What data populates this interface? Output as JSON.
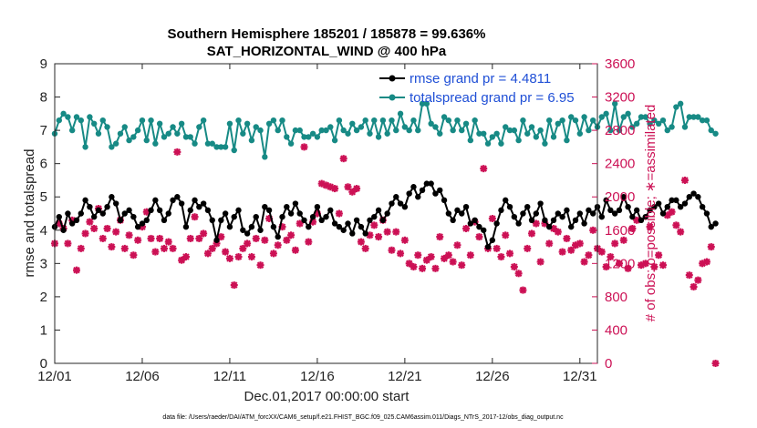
{
  "chart_data": {
    "type": "line",
    "title_line1": "Southern Hemisphere 185201 / 185878 = 99.636%",
    "title_line2": "SAT_HORIZONTAL_WIND @ 400 hPa",
    "xlabel": "Dec.01,2017 00:00:00 start",
    "ylabel_left": "rmse and totalspread",
    "ylabel_right": "# of obs: o=possible; ∗=assimilated",
    "x_ticks": [
      {
        "value": 0,
        "label": "12/01"
      },
      {
        "value": 5,
        "label": "12/06"
      },
      {
        "value": 10,
        "label": "12/11"
      },
      {
        "value": 15,
        "label": "12/16"
      },
      {
        "value": 20,
        "label": "12/21"
      },
      {
        "value": 25,
        "label": "12/26"
      },
      {
        "value": 30,
        "label": "12/31"
      }
    ],
    "xlim": [
      0,
      31
    ],
    "ylim_left": [
      0,
      9
    ],
    "ylim_right": [
      0,
      3600
    ],
    "yticks_left": [
      "0",
      "1",
      "2",
      "3",
      "4",
      "5",
      "6",
      "7",
      "8",
      "9"
    ],
    "yticks_right": [
      "0",
      "400",
      "800",
      "1200",
      "1600",
      "2000",
      "2400",
      "2800",
      "3200",
      "3600"
    ],
    "footnote": "data file: /Users/raeder/DAI/ATM_forcXX/CAM6_setup/f.e21.FHIST_BGC.f09_025.CAM6assim.011/Diags_NTrS_2017-12/obs_diag_output.nc",
    "legend": [
      {
        "label": "rmse grand pr = 4.4811",
        "color": "#000000"
      },
      {
        "label": "totalspread grand pr = 6.95",
        "color": "#178a85"
      }
    ],
    "colors": {
      "rmse": "#000000",
      "spread": "#178a85",
      "obs": "#cc1155",
      "right_axis": "#cc1155",
      "legend_text": "#1f4fd6"
    },
    "series": [
      {
        "name": "rmse",
        "x_start": 0,
        "x_step": 0.25,
        "values": [
          4.1,
          4.4,
          4.0,
          4.5,
          4.2,
          4.3,
          4.5,
          4.9,
          4.7,
          4.4,
          4.6,
          4.5,
          4.7,
          5.0,
          4.8,
          4.3,
          4.5,
          4.6,
          4.4,
          4.1,
          4.2,
          4.3,
          4.6,
          4.9,
          4.6,
          4.3,
          4.5,
          4.9,
          5.0,
          4.8,
          4.1,
          4.6,
          4.9,
          4.7,
          4.8,
          4.6,
          4.3,
          3.7,
          4.3,
          4.5,
          4.1,
          4.4,
          4.6,
          4.0,
          3.9,
          4.1,
          4.4,
          4.0,
          4.7,
          4.6,
          4.1,
          3.8,
          4.4,
          4.7,
          4.5,
          4.8,
          4.5,
          4.3,
          4.1,
          4.4,
          4.7,
          4.3,
          4.4,
          4.6,
          4.2,
          4.1,
          4.0,
          4.2,
          3.9,
          4.3,
          4.1,
          3.9,
          4.3,
          4.4,
          4.6,
          4.3,
          4.5,
          4.8,
          5.0,
          4.8,
          4.7,
          5.1,
          5.3,
          5.0,
          5.2,
          5.4,
          5.4,
          5.1,
          5.2,
          4.9,
          4.5,
          4.3,
          4.6,
          4.5,
          4.7,
          4.2,
          4.3,
          4.1,
          4.0,
          3.5,
          3.7,
          4.2,
          4.6,
          4.9,
          4.7,
          4.4,
          4.2,
          4.5,
          4.7,
          4.3,
          4.5,
          4.8,
          4.3,
          4.1,
          4.3,
          4.5,
          4.4,
          4.6,
          4.1,
          4.3,
          4.5,
          4.2,
          4.6,
          4.5,
          4.7,
          4.4,
          4.9,
          4.6,
          4.5,
          4.6,
          5.0,
          4.7,
          4.4,
          4.6,
          4.3,
          4.4,
          4.6,
          4.7,
          4.8,
          4.5,
          4.7,
          4.9,
          4.9,
          4.7,
          4.8,
          5.0,
          5.1,
          5.0,
          4.7,
          4.5,
          4.1,
          4.2
        ]
      },
      {
        "name": "totalspread",
        "x_start": 0,
        "x_step": 0.25,
        "values": [
          6.9,
          7.3,
          7.5,
          7.4,
          7.0,
          7.4,
          7.3,
          6.5,
          7.4,
          7.2,
          6.9,
          7.3,
          7.1,
          6.5,
          6.6,
          6.9,
          7.1,
          6.7,
          6.8,
          7.0,
          7.3,
          6.7,
          7.3,
          6.6,
          7.2,
          6.8,
          6.9,
          7.1,
          6.9,
          7.2,
          6.8,
          6.8,
          6.6,
          7.1,
          7.3,
          6.6,
          6.6,
          6.5,
          6.5,
          6.5,
          7.2,
          6.4,
          7.3,
          6.9,
          7.2,
          6.7,
          7.1,
          7.0,
          6.2,
          7.2,
          7.3,
          7.0,
          7.3,
          6.8,
          6.6,
          7.0,
          7.0,
          6.8,
          6.8,
          6.9,
          6.8,
          7.0,
          7.0,
          7.1,
          6.7,
          7.3,
          7.0,
          6.9,
          7.2,
          7.0,
          7.1,
          7.3,
          6.9,
          7.3,
          6.8,
          7.3,
          6.9,
          7.3,
          7.0,
          7.5,
          7.1,
          7.0,
          7.3,
          7.0,
          7.8,
          7.8,
          7.2,
          7.1,
          6.9,
          7.4,
          7.3,
          7.0,
          7.3,
          7.0,
          7.2,
          6.7,
          7.3,
          6.9,
          6.9,
          6.6,
          6.8,
          6.9,
          6.6,
          7.1,
          7.0,
          7.0,
          6.7,
          7.3,
          6.9,
          7.1,
          6.8,
          7.0,
          6.6,
          7.3,
          6.8,
          7.2,
          7.3,
          6.7,
          7.4,
          7.3,
          6.9,
          7.4,
          7.0,
          7.3,
          7.1,
          7.4,
          7.5,
          7.0,
          7.8,
          7.0,
          7.4,
          7.5,
          7.1,
          7.2,
          7.4,
          7.4,
          7.2,
          7.3,
          7.2,
          7.3,
          7.0,
          7.1,
          7.7,
          7.8,
          7.1,
          7.4,
          7.4,
          7.4,
          7.3,
          7.3,
          7.0,
          6.9
        ]
      },
      {
        "name": "observations_assimilated",
        "axis": "right",
        "x_start": 0,
        "x_step": 0.25,
        "values": [
          1440,
          1680,
          1620,
          1440,
          1720,
          1120,
          1380,
          1560,
          1700,
          1620,
          1860,
          1500,
          1620,
          1400,
          1580,
          1720,
          1380,
          1540,
          1300,
          1480,
          1640,
          1820,
          1500,
          1340,
          1500,
          1380,
          1460,
          1380,
          2540,
          1240,
          1280,
          1500,
          1760,
          1500,
          1560,
          1320,
          1380,
          1440,
          1520,
          1340,
          1260,
          940,
          1280,
          1380,
          1440,
          1280,
          1500,
          1180,
          1480,
          1740,
          1320,
          1420,
          1640,
          1480,
          1540,
          1360,
          1680,
          2600,
          1460,
          1700,
          1800,
          2160,
          2140,
          2120,
          2100,
          1800,
          2460,
          2120,
          2060,
          2100,
          1460,
          1380,
          1540,
          1660,
          1520,
          1720,
          1580,
          1360,
          1580,
          1320,
          1480,
          1200,
          1160,
          1300,
          1140,
          1240,
          1280,
          1140,
          1520,
          1260,
          1300,
          1220,
          1420,
          1180,
          1620,
          1300,
          1700,
          1520,
          2340,
          1380,
          1740,
          1380,
          1280,
          1540,
          1320,
          1160,
          1080,
          880,
          1380,
          1560,
          1680,
          1220,
          1680,
          1440,
          1620,
          1580,
          1340,
          1500,
          1360,
          1420,
          1440,
          1220,
          1300,
          1600,
          1380,
          1340,
          1160,
          1280,
          1440,
          1200,
          1480,
          1140,
          1620,
          1720,
          1180,
          1200,
          1640,
          1160,
          1300,
          1180,
          1780,
          1820,
          1660,
          1580,
          2200,
          1060,
          920,
          1000,
          1200,
          1220,
          1400,
          0
        ]
      }
    ]
  }
}
